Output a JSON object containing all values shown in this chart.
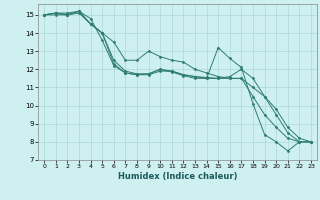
{
  "xlabel": "Humidex (Indice chaleur)",
  "background_color": "#cff0f0",
  "grid_color": "#aad8d8",
  "line_color": "#2e7d6e",
  "xlim": [
    -0.5,
    23.5
  ],
  "ylim": [
    7,
    15.6
  ],
  "yticks": [
    7,
    8,
    9,
    10,
    11,
    12,
    13,
    14,
    15
  ],
  "xticks": [
    0,
    1,
    2,
    3,
    4,
    5,
    6,
    7,
    8,
    9,
    10,
    11,
    12,
    13,
    14,
    15,
    16,
    17,
    18,
    19,
    20,
    21,
    22,
    23
  ],
  "series": [
    {
      "x": [
        0,
        1,
        2,
        3,
        4,
        5,
        6,
        7,
        8,
        9,
        10,
        11,
        12,
        13,
        14,
        15,
        16,
        17,
        18,
        19,
        20,
        21,
        22,
        23
      ],
      "y": [
        15.0,
        15.1,
        15.0,
        15.2,
        14.8,
        13.6,
        12.2,
        11.8,
        11.7,
        11.75,
        12.0,
        11.85,
        11.65,
        11.5,
        11.5,
        13.2,
        12.6,
        12.1,
        10.1,
        8.4,
        8.0,
        7.5,
        8.0,
        8.0
      ]
    },
    {
      "x": [
        0,
        1,
        2,
        3,
        4,
        5,
        6,
        7,
        8,
        9,
        10,
        11,
        12,
        13,
        14,
        15,
        16,
        17,
        18,
        19,
        20,
        21,
        22,
        23
      ],
      "y": [
        15.0,
        15.1,
        15.0,
        15.1,
        14.5,
        14.0,
        12.3,
        11.8,
        11.7,
        11.7,
        11.9,
        11.9,
        11.7,
        11.6,
        11.5,
        11.5,
        11.5,
        11.5,
        10.5,
        9.5,
        8.8,
        8.2,
        8.0,
        8.0
      ]
    },
    {
      "x": [
        0,
        1,
        2,
        3,
        4,
        5,
        6,
        7,
        8,
        9,
        10,
        11,
        12,
        13,
        14,
        15,
        16,
        17,
        18,
        19,
        20,
        21,
        22,
        23
      ],
      "y": [
        15.0,
        15.0,
        15.0,
        15.2,
        14.5,
        14.0,
        12.5,
        11.9,
        11.75,
        11.75,
        12.0,
        11.9,
        11.7,
        11.6,
        11.55,
        11.5,
        11.6,
        12.0,
        11.5,
        10.5,
        9.5,
        8.5,
        8.0,
        8.0
      ]
    },
    {
      "x": [
        0,
        1,
        2,
        3,
        4,
        5,
        6,
        7,
        8,
        9,
        10,
        11,
        12,
        13,
        14,
        15,
        16,
        17,
        18,
        19,
        20,
        21,
        22,
        23
      ],
      "y": [
        15.0,
        15.1,
        15.1,
        15.2,
        14.5,
        14.0,
        13.5,
        12.5,
        12.5,
        13.0,
        12.7,
        12.5,
        12.4,
        12.0,
        11.8,
        11.6,
        11.5,
        11.5,
        11.0,
        10.5,
        9.8,
        8.8,
        8.2,
        8.0
      ]
    }
  ]
}
